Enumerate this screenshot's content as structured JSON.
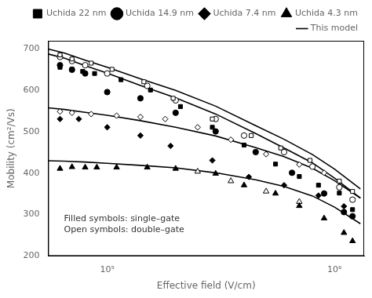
{
  "chart_data": {
    "type": "scatter",
    "xlabel": "Effective field (V/cm)",
    "ylabel": "Mobility (cm²/Vs)",
    "log": "x",
    "xlim": [
      55000.0,
      1350000.0
    ],
    "ylim": [
      200,
      720
    ],
    "xticks": [
      {
        "value": 100000.0,
        "label": "10⁵"
      },
      {
        "value": 1000000.0,
        "label": "10⁶"
      }
    ],
    "yticks": [
      200,
      300,
      400,
      500,
      600,
      700
    ],
    "grid": false,
    "legend": "upper right",
    "color": "black",
    "annotation": "Filled symbols: single–gate\nOpen symbols: double–gate",
    "series": [
      {
        "type": "line",
        "line_style": "solid",
        "x": [
          55000.0,
          65000.0,
          80000.0,
          100000.0,
          140000.0,
          200000.0,
          300000.0,
          450000.0,
          600000.0,
          800000.0,
          1000000.0,
          1300000.0
        ],
        "values": [
          700,
          690,
          673,
          656,
          628,
          600,
          562,
          515,
          482,
          445,
          410,
          362
        ]
      },
      {
        "type": "line",
        "line_style": "solid",
        "x": [
          55000.0,
          65000.0,
          80000.0,
          100000.0,
          140000.0,
          200000.0,
          300000.0,
          450000.0,
          600000.0,
          800000.0,
          1000000.0,
          1300000.0
        ],
        "values": [
          688,
          678,
          660,
          642,
          612,
          582,
          543,
          496,
          461,
          425,
          388,
          340
        ]
      },
      {
        "type": "line",
        "line_style": "solid",
        "x": [
          55000.0,
          65000.0,
          80000.0,
          100000.0,
          140000.0,
          200000.0,
          300000.0,
          450000.0,
          600000.0,
          800000.0,
          1000000.0,
          1300000.0
        ],
        "values": [
          558,
          554,
          547,
          540,
          527,
          511,
          490,
          462,
          440,
          412,
          382,
          340
        ]
      },
      {
        "type": "line",
        "line_style": "solid",
        "x": [
          55000.0,
          65000.0,
          80000.0,
          100000.0,
          140000.0,
          200000.0,
          300000.0,
          450000.0,
          600000.0,
          800000.0,
          1000000.0,
          1300000.0
        ],
        "values": [
          430,
          429,
          427,
          424,
          419,
          413,
          401,
          384,
          368,
          345,
          318,
          278
        ]
      },
      {
        "name": "Uchida 22 nm",
        "type": "scatter",
        "marker": "filled_square",
        "x": [
          62000.0,
          70000.0,
          78000.0,
          88000.0,
          115000.0,
          155000.0,
          210000.0,
          290000.0,
          400000.0,
          550000.0,
          700000.0,
          850000.0,
          1050000.0,
          1200000.0
        ],
        "values": [
          656,
          651,
          646,
          641,
          626,
          601,
          561,
          511,
          468,
          422,
          392,
          371,
          352,
          312
        ]
      },
      {
        "type": "scatter",
        "marker": "open_square",
        "x": [
          62000.0,
          70000.0,
          85000.0,
          105000.0,
          145000.0,
          195000.0,
          290000.0,
          430000.0,
          580000.0,
          780000.0,
          1050000.0,
          1200000.0
        ],
        "values": [
          686,
          676,
          666,
          651,
          621,
          581,
          531,
          491,
          461,
          431,
          381,
          356
        ]
      },
      {
        "name": "Uchida 14.9 nm",
        "type": "scatter",
        "marker": "filled_circle",
        "x": [
          62000.0,
          70000.0,
          80000.0,
          100000.0,
          140000.0,
          200000.0,
          300000.0,
          450000.0,
          650000.0,
          900000.0,
          1100000.0,
          1200000.0
        ],
        "values": [
          661,
          650,
          641,
          596,
          581,
          546,
          501,
          451,
          401,
          351,
          306,
          296
        ]
      },
      {
        "type": "scatter",
        "marker": "open_circle",
        "x": [
          62000.0,
          70000.0,
          80000.0,
          100000.0,
          150000.0,
          200000.0,
          300000.0,
          400000.0,
          600000.0,
          800000.0,
          1050000.0,
          1200000.0
        ],
        "values": [
          681,
          671,
          661,
          641,
          611,
          576,
          531,
          491,
          451,
          416,
          366,
          336
        ]
      },
      {
        "name": "Uchida 7.4 nm",
        "type": "scatter",
        "marker": "filled_diamond",
        "x": [
          62000.0,
          75000.0,
          100000.0,
          140000.0,
          190000.0,
          290000.0,
          420000.0,
          600000.0,
          850000.0,
          1100000.0
        ],
        "values": [
          531,
          531,
          511,
          491,
          466,
          431,
          391,
          371,
          346,
          320
        ]
      },
      {
        "type": "scatter",
        "marker": "open_diamond",
        "x": [
          62000.0,
          70000.0,
          85000.0,
          110000.0,
          140000.0,
          180000.0,
          250000.0,
          350000.0,
          500000.0,
          700000.0,
          900000.0
        ],
        "values": [
          549,
          546,
          543,
          539,
          536,
          531,
          511,
          481,
          446,
          421,
          401
        ]
      },
      {
        "name": "Uchida 4.3 nm",
        "type": "scatter",
        "marker": "filled_triangle",
        "x": [
          62000.0,
          70000.0,
          80000.0,
          90000.0,
          110000.0,
          150000.0,
          200000.0,
          300000.0,
          400000.0,
          550000.0,
          700000.0,
          900000.0,
          1100000.0,
          1200000.0
        ],
        "values": [
          411,
          415,
          414,
          414,
          414,
          414,
          411,
          399,
          371,
          351,
          321,
          291,
          256,
          236
        ]
      },
      {
        "type": "scatter",
        "marker": "open_triangle",
        "x": [
          250000.0,
          350000.0,
          500000.0,
          700000.0
        ],
        "values": [
          404,
          381,
          356,
          331
        ]
      },
      {
        "name": "This model",
        "type": "line",
        "line_style": "solid",
        "x": [],
        "values": []
      }
    ]
  }
}
